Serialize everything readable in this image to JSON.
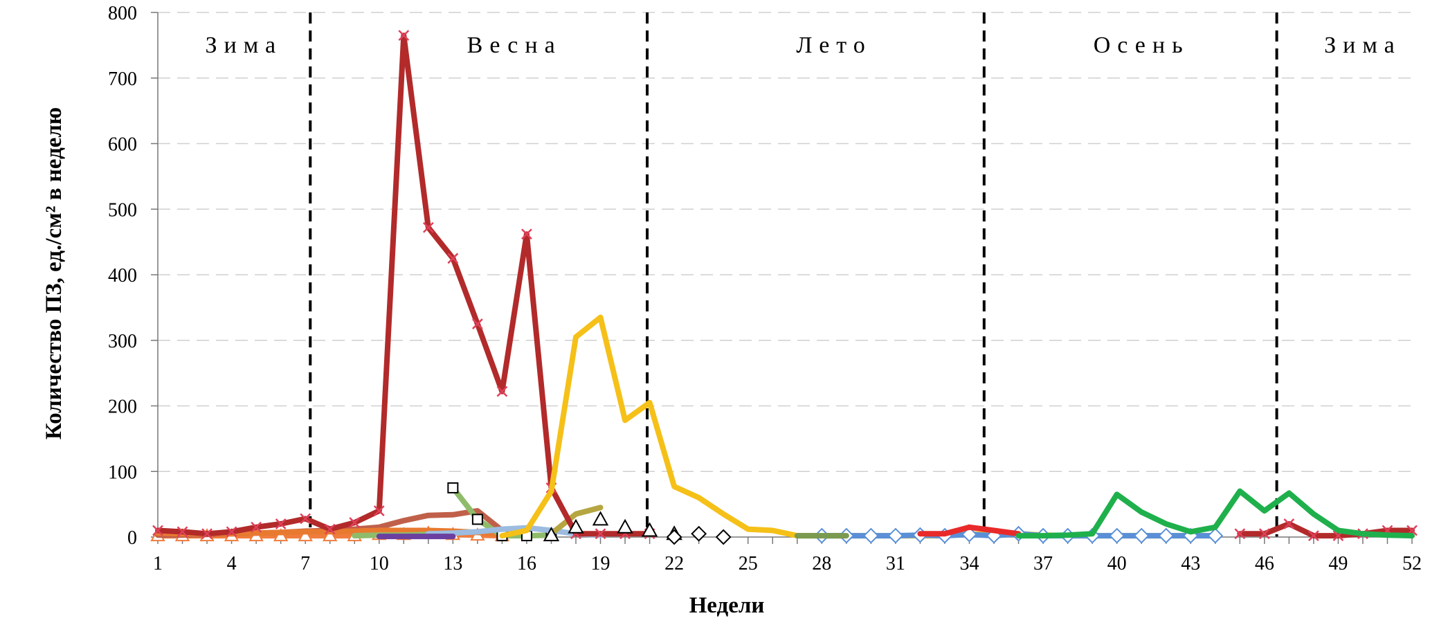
{
  "chart_data": {
    "type": "line",
    "xlabel": "Недели",
    "ylabel": "Количество ПЗ, ед./см² в неделю",
    "xlim": [
      1,
      52
    ],
    "ylim": [
      0,
      800
    ],
    "x_ticks": [
      "1",
      "4",
      "7",
      "10",
      "13",
      "16",
      "19",
      "22",
      "25",
      "28",
      "31",
      "34",
      "37",
      "40",
      "43",
      "46",
      "49",
      "52"
    ],
    "y_ticks": [
      "0",
      "100",
      "200",
      "300",
      "400",
      "500",
      "600",
      "700",
      "800"
    ],
    "grid": "horizontal dashed",
    "seasons": [
      {
        "label": "Зима",
        "center_week": 4.5
      },
      {
        "label": "Весна",
        "center_week": 15.5
      },
      {
        "label": "Лето",
        "center_week": 28.5
      },
      {
        "label": "Осень",
        "center_week": 41
      },
      {
        "label": "Зима",
        "center_week": 50
      }
    ],
    "season_boundaries": [
      7.2,
      20.9,
      34.6,
      46.5
    ],
    "series": [
      {
        "color": "#f07c3c",
        "marker": "triangle",
        "x": [
          1,
          2,
          3,
          4,
          5,
          6,
          7,
          8,
          9,
          10,
          11,
          12,
          13,
          14,
          15
        ],
        "values": [
          2,
          2,
          2,
          2,
          2,
          2,
          2,
          2,
          2,
          4,
          4,
          6,
          4,
          3,
          2
        ]
      },
      {
        "color": "#c0604a",
        "marker": "none",
        "x": [
          1,
          2,
          3,
          4,
          5,
          6,
          7,
          8,
          9,
          10,
          11,
          12,
          13,
          14,
          15,
          16
        ],
        "values": [
          3,
          3,
          4,
          5,
          6,
          7,
          9,
          10,
          12,
          15,
          25,
          33,
          34,
          40,
          10,
          5
        ]
      },
      {
        "color": "#e87a30",
        "marker": "none",
        "x": [
          1,
          2,
          3,
          4,
          5,
          6,
          7,
          8,
          9,
          10,
          11,
          12,
          13,
          14,
          15
        ],
        "values": [
          6,
          5,
          5,
          5,
          6,
          7,
          8,
          8,
          9,
          10,
          10,
          10,
          9,
          7,
          5
        ]
      },
      {
        "color": "#8fbc6a",
        "marker": "none",
        "x": [
          9,
          10,
          11,
          12,
          13
        ],
        "values": [
          2,
          3,
          3,
          4,
          3
        ]
      },
      {
        "color": "#8fbc6a",
        "marker": "square",
        "x": [
          13,
          14,
          15,
          16,
          17
        ],
        "values": [
          75,
          27,
          2,
          2,
          3
        ]
      },
      {
        "color": "#9bbbe0",
        "marker": "none",
        "x": [
          12,
          13,
          14,
          15,
          16,
          17,
          18,
          19
        ],
        "values": [
          5,
          6,
          8,
          12,
          14,
          10,
          5,
          3
        ]
      },
      {
        "color": "#6b3fa0",
        "marker": "none",
        "x": [
          10,
          11,
          12,
          13
        ],
        "values": [
          1,
          1,
          1,
          1
        ]
      },
      {
        "color": "#b5a642",
        "marker": "none",
        "x": [
          17,
          18,
          19
        ],
        "values": [
          5,
          35,
          45
        ]
      },
      {
        "color": "#b22a2a",
        "marker": "x",
        "x": [
          1,
          2,
          3,
          4,
          5,
          6,
          7,
          8,
          9,
          10,
          11,
          12,
          13,
          14,
          15,
          16,
          17,
          18,
          19,
          20,
          21
        ],
        "values": [
          10,
          8,
          5,
          8,
          15,
          20,
          28,
          12,
          22,
          40,
          765,
          472,
          425,
          325,
          222,
          462,
          75,
          5,
          5,
          5,
          5
        ]
      },
      {
        "color": "#b22a2a",
        "marker": "x",
        "x": [
          45,
          46,
          47,
          48,
          49,
          50,
          51,
          52
        ],
        "values": [
          5,
          5,
          20,
          2,
          2,
          5,
          10,
          10
        ]
      },
      {
        "color": "#f5c018",
        "marker": "none",
        "x": [
          15,
          16,
          17,
          18,
          19,
          20,
          21,
          22,
          23,
          24,
          25,
          26,
          27,
          28,
          29,
          30,
          31,
          32,
          33,
          34,
          35,
          36,
          37,
          38,
          39,
          40,
          41,
          42,
          43,
          44
        ],
        "values": [
          2,
          10,
          70,
          305,
          335,
          178,
          205,
          77,
          60,
          35,
          12,
          10,
          2,
          2,
          2,
          2,
          2,
          2,
          2,
          5,
          3,
          5,
          3,
          2,
          2,
          2,
          2,
          2,
          2,
          2
        ]
      },
      {
        "color": "#ffffff",
        "marker": "triangle-black",
        "x": [
          17,
          18,
          19,
          20,
          21,
          22
        ],
        "values": [
          3,
          15,
          27,
          15,
          10,
          5
        ]
      },
      {
        "color": "#ffffff",
        "marker": "diamond-black",
        "x": [
          22,
          23,
          24
        ],
        "values": [
          0,
          5,
          0
        ]
      },
      {
        "color": "#5a8fd8",
        "marker": "diamond",
        "x": [
          28,
          29,
          30,
          31,
          32,
          33,
          34,
          35,
          36,
          37,
          38,
          39,
          40,
          41,
          42,
          43,
          44
        ],
        "values": [
          2,
          2,
          2,
          2,
          3,
          2,
          4,
          2,
          5,
          2,
          2,
          2,
          2,
          2,
          2,
          2,
          2
        ]
      },
      {
        "color": "#7a9a50",
        "marker": "none",
        "x": [
          27,
          28,
          29
        ],
        "values": [
          2,
          2,
          2
        ]
      },
      {
        "color": "#e82a2a",
        "marker": "none",
        "x": [
          32,
          33,
          34,
          35,
          36
        ],
        "values": [
          5,
          5,
          15,
          10,
          5
        ]
      },
      {
        "color": "#1fb04c",
        "marker": "none",
        "x": [
          36,
          37,
          38,
          39,
          40,
          41,
          42,
          43,
          44,
          45,
          46,
          47,
          48,
          49,
          50,
          51,
          52
        ],
        "values": [
          2,
          2,
          3,
          5,
          65,
          38,
          20,
          8,
          15,
          70,
          40,
          67,
          35,
          10,
          5,
          3,
          2
        ]
      }
    ]
  }
}
